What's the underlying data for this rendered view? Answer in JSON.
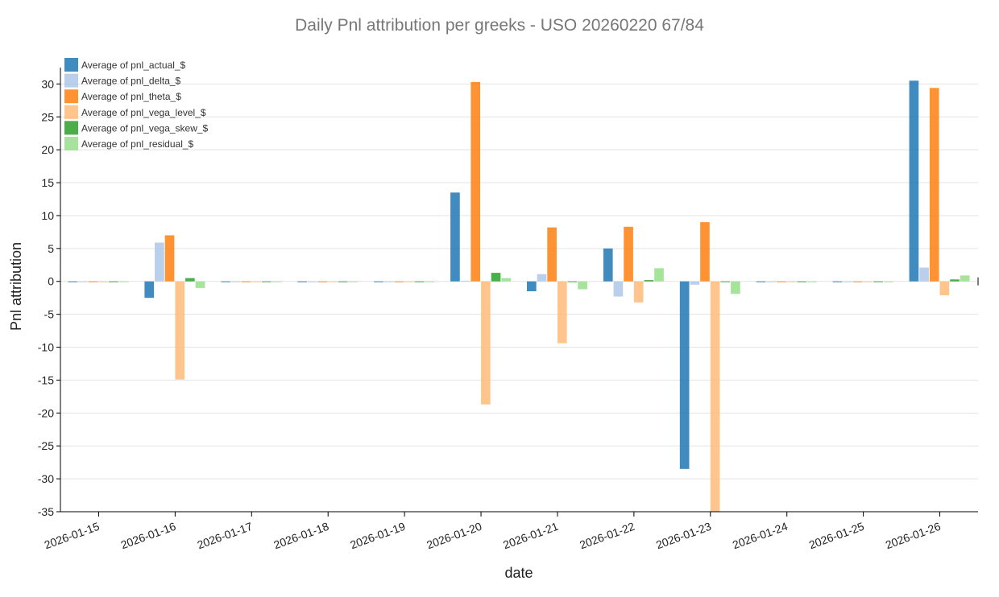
{
  "chart_data": {
    "type": "bar",
    "title": "Daily Pnl attribution per greeks - USO 20260220 67/84",
    "xlabel": "date",
    "ylabel": "Pnl attribution",
    "ylim": [
      -35,
      32
    ],
    "yticks": [
      -35,
      -30,
      -25,
      -20,
      -15,
      -10,
      -5,
      0,
      5,
      10,
      15,
      20,
      25,
      30
    ],
    "grid": true,
    "legend_position": "top-left",
    "categories": [
      "2026-01-15",
      "2026-01-16",
      "2026-01-17",
      "2026-01-18",
      "2026-01-19",
      "2026-01-20",
      "2026-01-21",
      "2026-01-22",
      "2026-01-23",
      "2026-01-24",
      "2026-01-25",
      "2026-01-26"
    ],
    "series": [
      {
        "name": "Average of pnl_actual_$",
        "color": "#1f77b4",
        "values": [
          -0.1,
          -2.5,
          -0.1,
          -0.1,
          -0.1,
          13.5,
          -1.5,
          5.0,
          -28.5,
          -0.1,
          -0.1,
          30.5
        ]
      },
      {
        "name": "Average of pnl_delta_$",
        "color": "#aec7e8",
        "values": [
          -0.1,
          5.9,
          -0.1,
          -0.1,
          -0.1,
          0.1,
          1.1,
          -2.3,
          -0.5,
          -0.1,
          -0.1,
          2.1
        ]
      },
      {
        "name": "Average of pnl_theta_$",
        "color": "#ff7f0e",
        "values": [
          -0.1,
          7.0,
          -0.1,
          -0.1,
          -0.1,
          30.3,
          8.2,
          8.3,
          9.0,
          -0.1,
          -0.1,
          29.4
        ]
      },
      {
        "name": "Average of pnl_vega_level_$",
        "color": "#ffbb78",
        "values": [
          -0.1,
          -14.9,
          -0.1,
          -0.1,
          -0.1,
          -18.7,
          -9.4,
          -3.2,
          -35.0,
          -0.1,
          -0.1,
          -2.1
        ]
      },
      {
        "name": "Average of pnl_vega_skew_$",
        "color": "#2ca02c",
        "values": [
          -0.1,
          0.5,
          -0.1,
          -0.1,
          -0.1,
          1.3,
          -0.1,
          0.2,
          -0.1,
          -0.1,
          -0.1,
          0.3
        ]
      },
      {
        "name": "Average of pnl_residual_$",
        "color": "#98df8a",
        "values": [
          -0.1,
          -1.0,
          -0.1,
          -0.1,
          -0.1,
          0.5,
          -1.2,
          2.0,
          -1.9,
          -0.1,
          -0.1,
          0.9
        ]
      }
    ]
  }
}
